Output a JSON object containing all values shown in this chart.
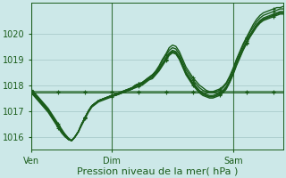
{
  "bg_color": "#cce8e8",
  "grid_color": "#aacccc",
  "line_color": "#1a5c1a",
  "xlabel": "Pression niveau de la mer( hPa )",
  "xlabel_fontsize": 8,
  "ylim": [
    1015.5,
    1021.2
  ],
  "yticks": [
    1016,
    1017,
    1018,
    1019,
    1020
  ],
  "xtick_labels": [
    "Ven",
    "Dim",
    "Sam"
  ],
  "xtick_positions": [
    0,
    24,
    60
  ],
  "total_points": 76,
  "series": [
    [
      1017.8,
      1017.7,
      1017.55,
      1017.4,
      1017.25,
      1017.1,
      1016.9,
      1016.7,
      1016.5,
      1016.3,
      1016.1,
      1015.95,
      1015.85,
      1016.0,
      1016.2,
      1016.5,
      1016.75,
      1017.0,
      1017.2,
      1017.3,
      1017.4,
      1017.45,
      1017.5,
      1017.55,
      1017.6,
      1017.65,
      1017.7,
      1017.75,
      1017.8,
      1017.85,
      1017.9,
      1018.0,
      1018.05,
      1018.1,
      1018.2,
      1018.3,
      1018.4,
      1018.55,
      1018.75,
      1019.0,
      1019.2,
      1019.45,
      1019.55,
      1019.5,
      1019.3,
      1019.0,
      1018.7,
      1018.5,
      1018.3,
      1018.15,
      1018.0,
      1017.9,
      1017.8,
      1017.75,
      1017.75,
      1017.8,
      1017.85,
      1017.95,
      1018.1,
      1018.35,
      1018.65,
      1019.0,
      1019.3,
      1019.6,
      1019.85,
      1020.1,
      1020.35,
      1020.55,
      1020.7,
      1020.8,
      1020.85,
      1020.9,
      1020.95,
      1021.0,
      1021.0,
      1021.05
    ],
    [
      1017.75,
      1017.65,
      1017.5,
      1017.35,
      1017.2,
      1017.05,
      1016.85,
      1016.65,
      1016.45,
      1016.25,
      1016.05,
      1015.9,
      1015.85,
      1016.0,
      1016.2,
      1016.5,
      1016.75,
      1017.0,
      1017.2,
      1017.3,
      1017.4,
      1017.45,
      1017.5,
      1017.55,
      1017.6,
      1017.65,
      1017.7,
      1017.75,
      1017.8,
      1017.85,
      1017.9,
      1018.0,
      1018.05,
      1018.1,
      1018.2,
      1018.3,
      1018.4,
      1018.5,
      1018.7,
      1018.95,
      1019.15,
      1019.35,
      1019.45,
      1019.4,
      1019.2,
      1018.9,
      1018.6,
      1018.4,
      1018.2,
      1018.05,
      1017.9,
      1017.8,
      1017.75,
      1017.7,
      1017.7,
      1017.75,
      1017.8,
      1017.9,
      1018.05,
      1018.3,
      1018.6,
      1018.95,
      1019.25,
      1019.55,
      1019.8,
      1020.05,
      1020.25,
      1020.45,
      1020.6,
      1020.7,
      1020.75,
      1020.8,
      1020.85,
      1020.9,
      1020.95,
      1020.95
    ],
    [
      1017.75,
      1017.65,
      1017.5,
      1017.35,
      1017.2,
      1017.05,
      1016.85,
      1016.65,
      1016.45,
      1016.25,
      1016.1,
      1015.95,
      1015.85,
      1016.0,
      1016.2,
      1016.5,
      1016.75,
      1017.0,
      1017.2,
      1017.3,
      1017.4,
      1017.45,
      1017.5,
      1017.55,
      1017.6,
      1017.65,
      1017.7,
      1017.75,
      1017.8,
      1017.85,
      1017.9,
      1018.0,
      1018.05,
      1018.1,
      1018.2,
      1018.3,
      1018.35,
      1018.5,
      1018.65,
      1018.85,
      1019.05,
      1019.25,
      1019.35,
      1019.3,
      1019.1,
      1018.8,
      1018.5,
      1018.3,
      1018.1,
      1017.95,
      1017.8,
      1017.7,
      1017.65,
      1017.6,
      1017.6,
      1017.65,
      1017.7,
      1017.8,
      1017.95,
      1018.2,
      1018.5,
      1018.85,
      1019.15,
      1019.45,
      1019.7,
      1019.95,
      1020.15,
      1020.35,
      1020.5,
      1020.6,
      1020.65,
      1020.7,
      1020.75,
      1020.8,
      1020.85,
      1020.85
    ],
    [
      1017.7,
      1017.6,
      1017.45,
      1017.3,
      1017.15,
      1017.0,
      1016.8,
      1016.6,
      1016.4,
      1016.2,
      1016.05,
      1015.9,
      1015.85,
      1016.0,
      1016.2,
      1016.5,
      1016.75,
      1017.0,
      1017.2,
      1017.3,
      1017.4,
      1017.45,
      1017.5,
      1017.55,
      1017.6,
      1017.6,
      1017.65,
      1017.7,
      1017.75,
      1017.8,
      1017.85,
      1017.95,
      1018.0,
      1018.05,
      1018.15,
      1018.25,
      1018.3,
      1018.45,
      1018.6,
      1018.8,
      1019.0,
      1019.2,
      1019.3,
      1019.25,
      1019.05,
      1018.75,
      1018.45,
      1018.25,
      1018.05,
      1017.9,
      1017.75,
      1017.65,
      1017.6,
      1017.55,
      1017.55,
      1017.6,
      1017.65,
      1017.75,
      1017.9,
      1018.15,
      1018.45,
      1018.8,
      1019.1,
      1019.4,
      1019.65,
      1019.9,
      1020.1,
      1020.3,
      1020.45,
      1020.55,
      1020.6,
      1020.65,
      1020.7,
      1020.75,
      1020.8,
      1020.8
    ],
    [
      1017.7,
      1017.6,
      1017.45,
      1017.3,
      1017.15,
      1017.0,
      1016.8,
      1016.6,
      1016.4,
      1016.2,
      1016.05,
      1015.9,
      1015.85,
      1016.0,
      1016.2,
      1016.5,
      1016.75,
      1017.0,
      1017.2,
      1017.3,
      1017.4,
      1017.45,
      1017.5,
      1017.55,
      1017.6,
      1017.6,
      1017.65,
      1017.7,
      1017.75,
      1017.8,
      1017.85,
      1017.95,
      1018.0,
      1018.05,
      1018.15,
      1018.25,
      1018.3,
      1018.45,
      1018.6,
      1018.8,
      1019.0,
      1019.2,
      1019.3,
      1019.25,
      1019.05,
      1018.75,
      1018.45,
      1018.25,
      1018.05,
      1017.9,
      1017.75,
      1017.65,
      1017.6,
      1017.55,
      1017.55,
      1017.6,
      1017.65,
      1017.75,
      1017.9,
      1018.15,
      1018.45,
      1018.8,
      1019.1,
      1019.4,
      1019.65,
      1019.9,
      1020.1,
      1020.3,
      1020.45,
      1020.55,
      1020.6,
      1020.65,
      1020.7,
      1020.75,
      1020.8,
      1020.8
    ],
    [
      1017.7,
      1017.55,
      1017.4,
      1017.25,
      1017.1,
      1016.95,
      1016.75,
      1016.55,
      1016.35,
      1016.15,
      1016.0,
      1015.9,
      1015.85,
      1016.0,
      1016.2,
      1016.45,
      1016.7,
      1016.95,
      1017.15,
      1017.25,
      1017.35,
      1017.4,
      1017.45,
      1017.5,
      1017.55,
      1017.6,
      1017.65,
      1017.7,
      1017.75,
      1017.8,
      1017.85,
      1017.9,
      1017.95,
      1018.0,
      1018.1,
      1018.2,
      1018.25,
      1018.4,
      1018.55,
      1018.75,
      1018.95,
      1019.15,
      1019.25,
      1019.2,
      1019.0,
      1018.7,
      1018.4,
      1018.2,
      1018.0,
      1017.85,
      1017.7,
      1017.6,
      1017.55,
      1017.5,
      1017.5,
      1017.55,
      1017.6,
      1017.7,
      1017.85,
      1018.1,
      1018.4,
      1018.75,
      1019.05,
      1019.35,
      1019.6,
      1019.85,
      1020.05,
      1020.25,
      1020.4,
      1020.5,
      1020.55,
      1020.6,
      1020.65,
      1020.7,
      1020.75,
      1020.75
    ]
  ],
  "flat_series": [
    [
      1017.8,
      1017.75,
      1017.75,
      1017.75,
      1017.75,
      1017.75,
      1017.75,
      1017.75,
      1017.75,
      1017.75,
      1017.75,
      1017.75,
      1017.75,
      1017.75,
      1017.75,
      1017.75,
      1017.75,
      1017.75,
      1017.75,
      1017.75,
      1017.75,
      1017.75,
      1017.75,
      1017.75,
      1017.75,
      1017.75,
      1017.75,
      1017.75,
      1017.75,
      1017.75,
      1017.75,
      1017.75,
      1017.75,
      1017.75,
      1017.75,
      1017.75,
      1017.75,
      1017.75,
      1017.75,
      1017.75,
      1017.75,
      1017.75,
      1017.75,
      1017.75,
      1017.75,
      1017.75,
      1017.75,
      1017.75,
      1017.75,
      1017.75,
      1017.75,
      1017.75,
      1017.75,
      1017.75,
      1017.75,
      1017.75,
      1017.75,
      1017.75,
      1017.75,
      1017.75,
      1017.75,
      1017.75,
      1017.75,
      1017.75,
      1017.75,
      1017.75,
      1017.75,
      1017.75,
      1017.75,
      1017.75,
      1017.75,
      1017.75,
      1017.75,
      1017.75,
      1017.75,
      1017.75
    ],
    [
      1017.75,
      1017.7,
      1017.7,
      1017.7,
      1017.7,
      1017.7,
      1017.7,
      1017.7,
      1017.7,
      1017.7,
      1017.7,
      1017.7,
      1017.7,
      1017.7,
      1017.7,
      1017.7,
      1017.7,
      1017.7,
      1017.7,
      1017.7,
      1017.7,
      1017.7,
      1017.7,
      1017.7,
      1017.7,
      1017.7,
      1017.7,
      1017.7,
      1017.7,
      1017.7,
      1017.7,
      1017.7,
      1017.7,
      1017.7,
      1017.7,
      1017.7,
      1017.7,
      1017.7,
      1017.7,
      1017.7,
      1017.7,
      1017.7,
      1017.7,
      1017.7,
      1017.7,
      1017.7,
      1017.7,
      1017.7,
      1017.7,
      1017.7,
      1017.7,
      1017.7,
      1017.7,
      1017.7,
      1017.7,
      1017.7,
      1017.7,
      1017.7,
      1017.7,
      1017.7,
      1017.7,
      1017.7,
      1017.7,
      1017.7,
      1017.7,
      1017.7,
      1017.7,
      1017.7,
      1017.7,
      1017.7,
      1017.7,
      1017.7,
      1017.7,
      1017.7,
      1017.7,
      1017.7
    ]
  ],
  "marker_every": 8,
  "linewidth": 1.0,
  "markersize": 2.5
}
